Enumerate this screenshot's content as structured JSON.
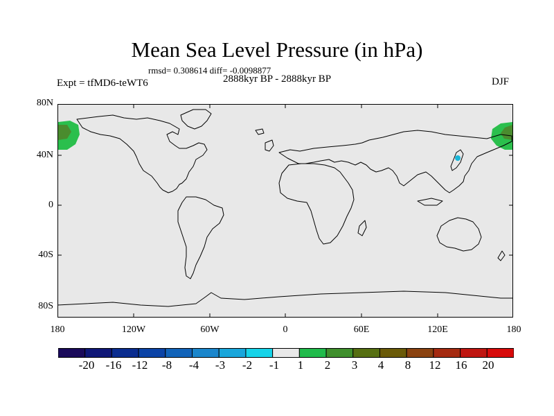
{
  "title": "Mean Sea Level Pressure (in hPa)",
  "stats": "rmsd= 0.308614  diff= -0.0098877",
  "expt": "Expt = tfMD6-teWT6",
  "period": "2888kyr BP - 2888kyr BP",
  "season": "DJF",
  "lat_labels": [
    "80N",
    "40N",
    "0",
    "40S",
    "80S"
  ],
  "lon_labels": [
    "180",
    "120W",
    "60W",
    "0",
    "60E",
    "120E",
    "180"
  ],
  "colorbar": {
    "labels": [
      "-20",
      "-16",
      "-12",
      "-8",
      "-4",
      "-3",
      "-2",
      "-1",
      "1",
      "2",
      "3",
      "4",
      "8",
      "12",
      "16",
      "20"
    ],
    "colors": [
      "#1a0a5a",
      "#0f1777",
      "#0a2c8f",
      "#0b43a6",
      "#1163b9",
      "#1a86cc",
      "#19a6db",
      "#16d3e8",
      "#e8e8e8",
      "#20bb4b",
      "#3f8f2d",
      "#566f12",
      "#6a5a08",
      "#8a4210",
      "#a52a10",
      "#bf1510",
      "#d70a0a"
    ]
  },
  "map": {
    "background_color": "#e8e8e8",
    "anomaly_regions": [
      {
        "name": "north-pacific-west-edge",
        "value_range": "2 to 4",
        "lat": [
          35,
          62
        ],
        "lon": [
          -180,
          -160
        ]
      },
      {
        "name": "north-pacific-east-edge",
        "value_range": "2 to 4",
        "lat": [
          35,
          62
        ],
        "lon": [
          165,
          180
        ]
      },
      {
        "name": "japan-sea-spot",
        "value_range": "-2 to -1",
        "lat": [
          38,
          38
        ],
        "lon": [
          137,
          137
        ]
      }
    ]
  }
}
